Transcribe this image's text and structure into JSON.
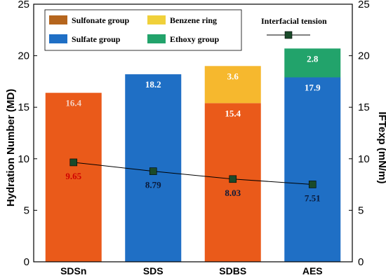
{
  "chart_data": {
    "type": "bar",
    "stacked": true,
    "categories": [
      "SDSn",
      "SDS",
      "SDBS",
      "AES"
    ],
    "ylabel": "Hydration Number (MD)",
    "y2label": "IFTexp (mN/m)",
    "ylim": [
      0,
      25
    ],
    "y2lim": [
      0,
      25
    ],
    "yticks": [
      0,
      5,
      10,
      15,
      20,
      25
    ],
    "series": [
      {
        "name": "Sulfonate group",
        "color": "#b5651d",
        "values": [
          16.4,
          0,
          0,
          0
        ],
        "labels": [
          "16.4",
          "",
          "",
          ""
        ],
        "label_color": "#f5d0c0"
      },
      {
        "name": "Sulfate group",
        "color": "#1f6fc5",
        "values": [
          0,
          18.2,
          15.4,
          17.9
        ],
        "labels": [
          "",
          "18.2",
          "15.4",
          "17.9"
        ],
        "label_color": "#ffffff"
      },
      {
        "name": "Benzene ring",
        "color": "#f6b82e",
        "values": [
          0,
          0,
          3.6,
          0
        ],
        "labels": [
          "",
          "",
          "3.6",
          ""
        ],
        "label_color": "#ffffff"
      },
      {
        "name": "Ethoxy group",
        "color": "#22a36b",
        "values": [
          0,
          0,
          0,
          2.8
        ],
        "labels": [
          "",
          "",
          "",
          "2.8"
        ],
        "label_color": "#ffffff"
      }
    ],
    "line_series": {
      "name": "Interfacial tension",
      "color": "#000000",
      "marker_color": "#1a4a2a",
      "values": [
        9.65,
        8.79,
        8.03,
        7.51
      ],
      "labels": [
        "9.65",
        "8.79",
        "8.03",
        "7.51"
      ]
    },
    "legend": {
      "position": "top",
      "items": [
        {
          "name": "Sulfonate group",
          "color": "#b5651d"
        },
        {
          "name": "Benzene ring",
          "color": "#f0d03a"
        },
        {
          "name": "Interfacial tension",
          "color": "#000000"
        },
        {
          "name": "Sulfate group",
          "color": "#1f6fc5"
        },
        {
          "name": "Ethoxy group",
          "color": "#22a36b"
        }
      ]
    },
    "bar_fill_override": {
      "SDSn": "#ea5a1a",
      "SDBS_sulfate": "#ea5a1a"
    }
  }
}
